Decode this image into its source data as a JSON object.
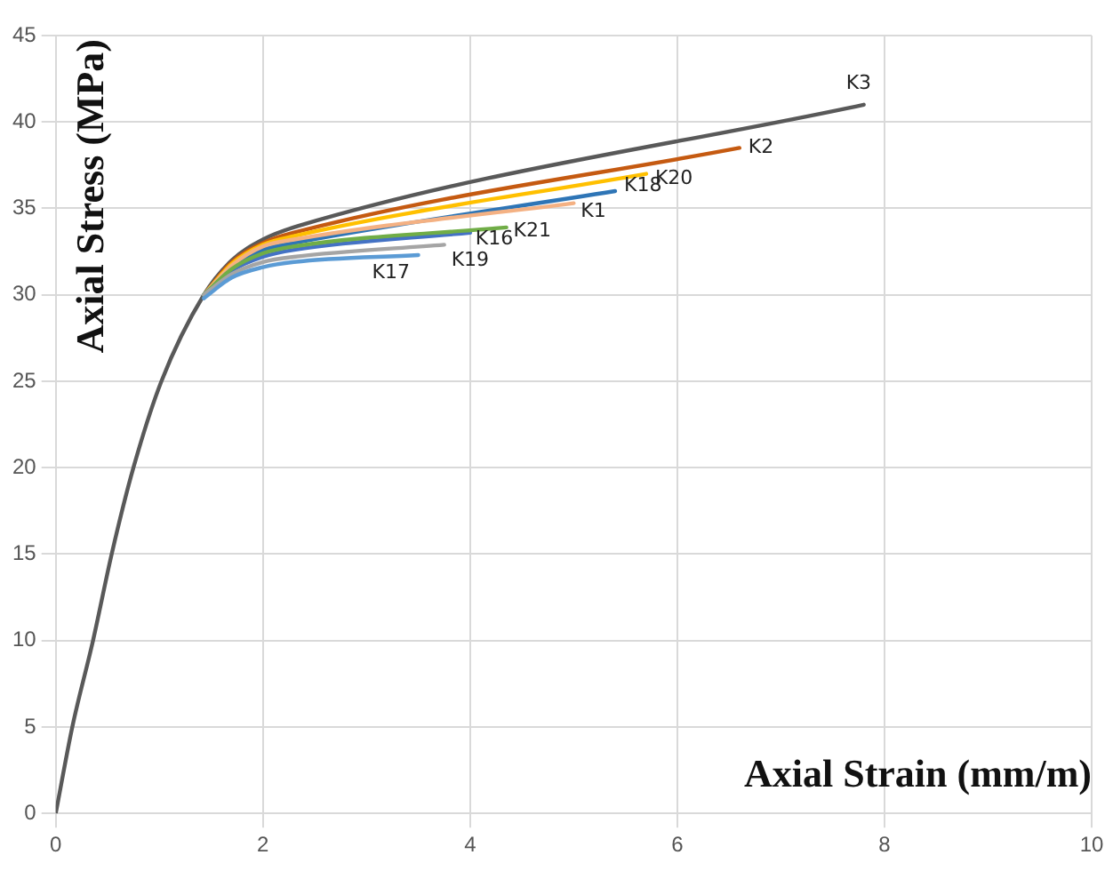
{
  "chart_data": {
    "type": "line",
    "xlabel": "Axial Strain (mm/m)",
    "ylabel": "Axial Stress (MPa)",
    "xlim": [
      0,
      10
    ],
    "xticks": [
      0,
      2,
      4,
      6,
      8,
      10
    ],
    "ylim": [
      0,
      45
    ],
    "yticks": [
      0,
      5,
      10,
      15,
      20,
      25,
      30,
      35,
      40,
      45
    ],
    "grid": true,
    "legend": false,
    "marker": "none",
    "line_style": "solid",
    "series": [
      {
        "name": "K3",
        "color": "#595959",
        "x": [
          0,
          0.16,
          0.36,
          0.54,
          0.75,
          1.02,
          1.43,
          1.7,
          2,
          2.35,
          7.8
        ],
        "values": [
          0,
          5,
          10,
          15,
          20,
          25,
          30,
          32,
          33.2,
          34,
          41
        ]
      },
      {
        "name": "K2",
        "color": "#c55a11",
        "x": [
          1.43,
          1.7,
          2,
          2.3,
          6.6
        ],
        "values": [
          30,
          31.9,
          33,
          33.6,
          38.5
        ]
      },
      {
        "name": "K20",
        "color": "#ffc000",
        "x": [
          1.43,
          1.7,
          2,
          2.3,
          5.7
        ],
        "values": [
          30,
          31.8,
          32.9,
          33.4,
          37
        ]
      },
      {
        "name": "K18",
        "color": "#2e75b6",
        "x": [
          1.43,
          1.7,
          2,
          2.3,
          5.4
        ],
        "values": [
          30,
          31.6,
          32.6,
          33,
          36
        ]
      },
      {
        "name": "K1",
        "color": "#f4b183",
        "x": [
          1.43,
          1.7,
          2,
          2.3,
          5
        ],
        "values": [
          30,
          31.7,
          32.8,
          33.2,
          35.3
        ]
      },
      {
        "name": "K16",
        "color": "#4472c4",
        "x": [
          1.43,
          1.7,
          2,
          2.3,
          4
        ],
        "values": [
          30,
          31.4,
          32.2,
          32.6,
          33.6
        ]
      },
      {
        "name": "K21",
        "color": "#70ad47",
        "x": [
          1.43,
          1.7,
          2,
          2.3,
          4.35
        ],
        "values": [
          30,
          31.5,
          32.4,
          32.8,
          33.9
        ]
      },
      {
        "name": "K19",
        "color": "#a5a5a5",
        "x": [
          1.43,
          1.7,
          2,
          2.3,
          3.75
        ],
        "values": [
          30,
          31.2,
          31.9,
          32.2,
          32.9
        ]
      },
      {
        "name": "K17",
        "color": "#5b9bd5",
        "x": [
          1.43,
          1.7,
          2,
          2.3,
          3.5
        ],
        "values": [
          29.8,
          31,
          31.6,
          31.9,
          32.3
        ]
      }
    ]
  }
}
